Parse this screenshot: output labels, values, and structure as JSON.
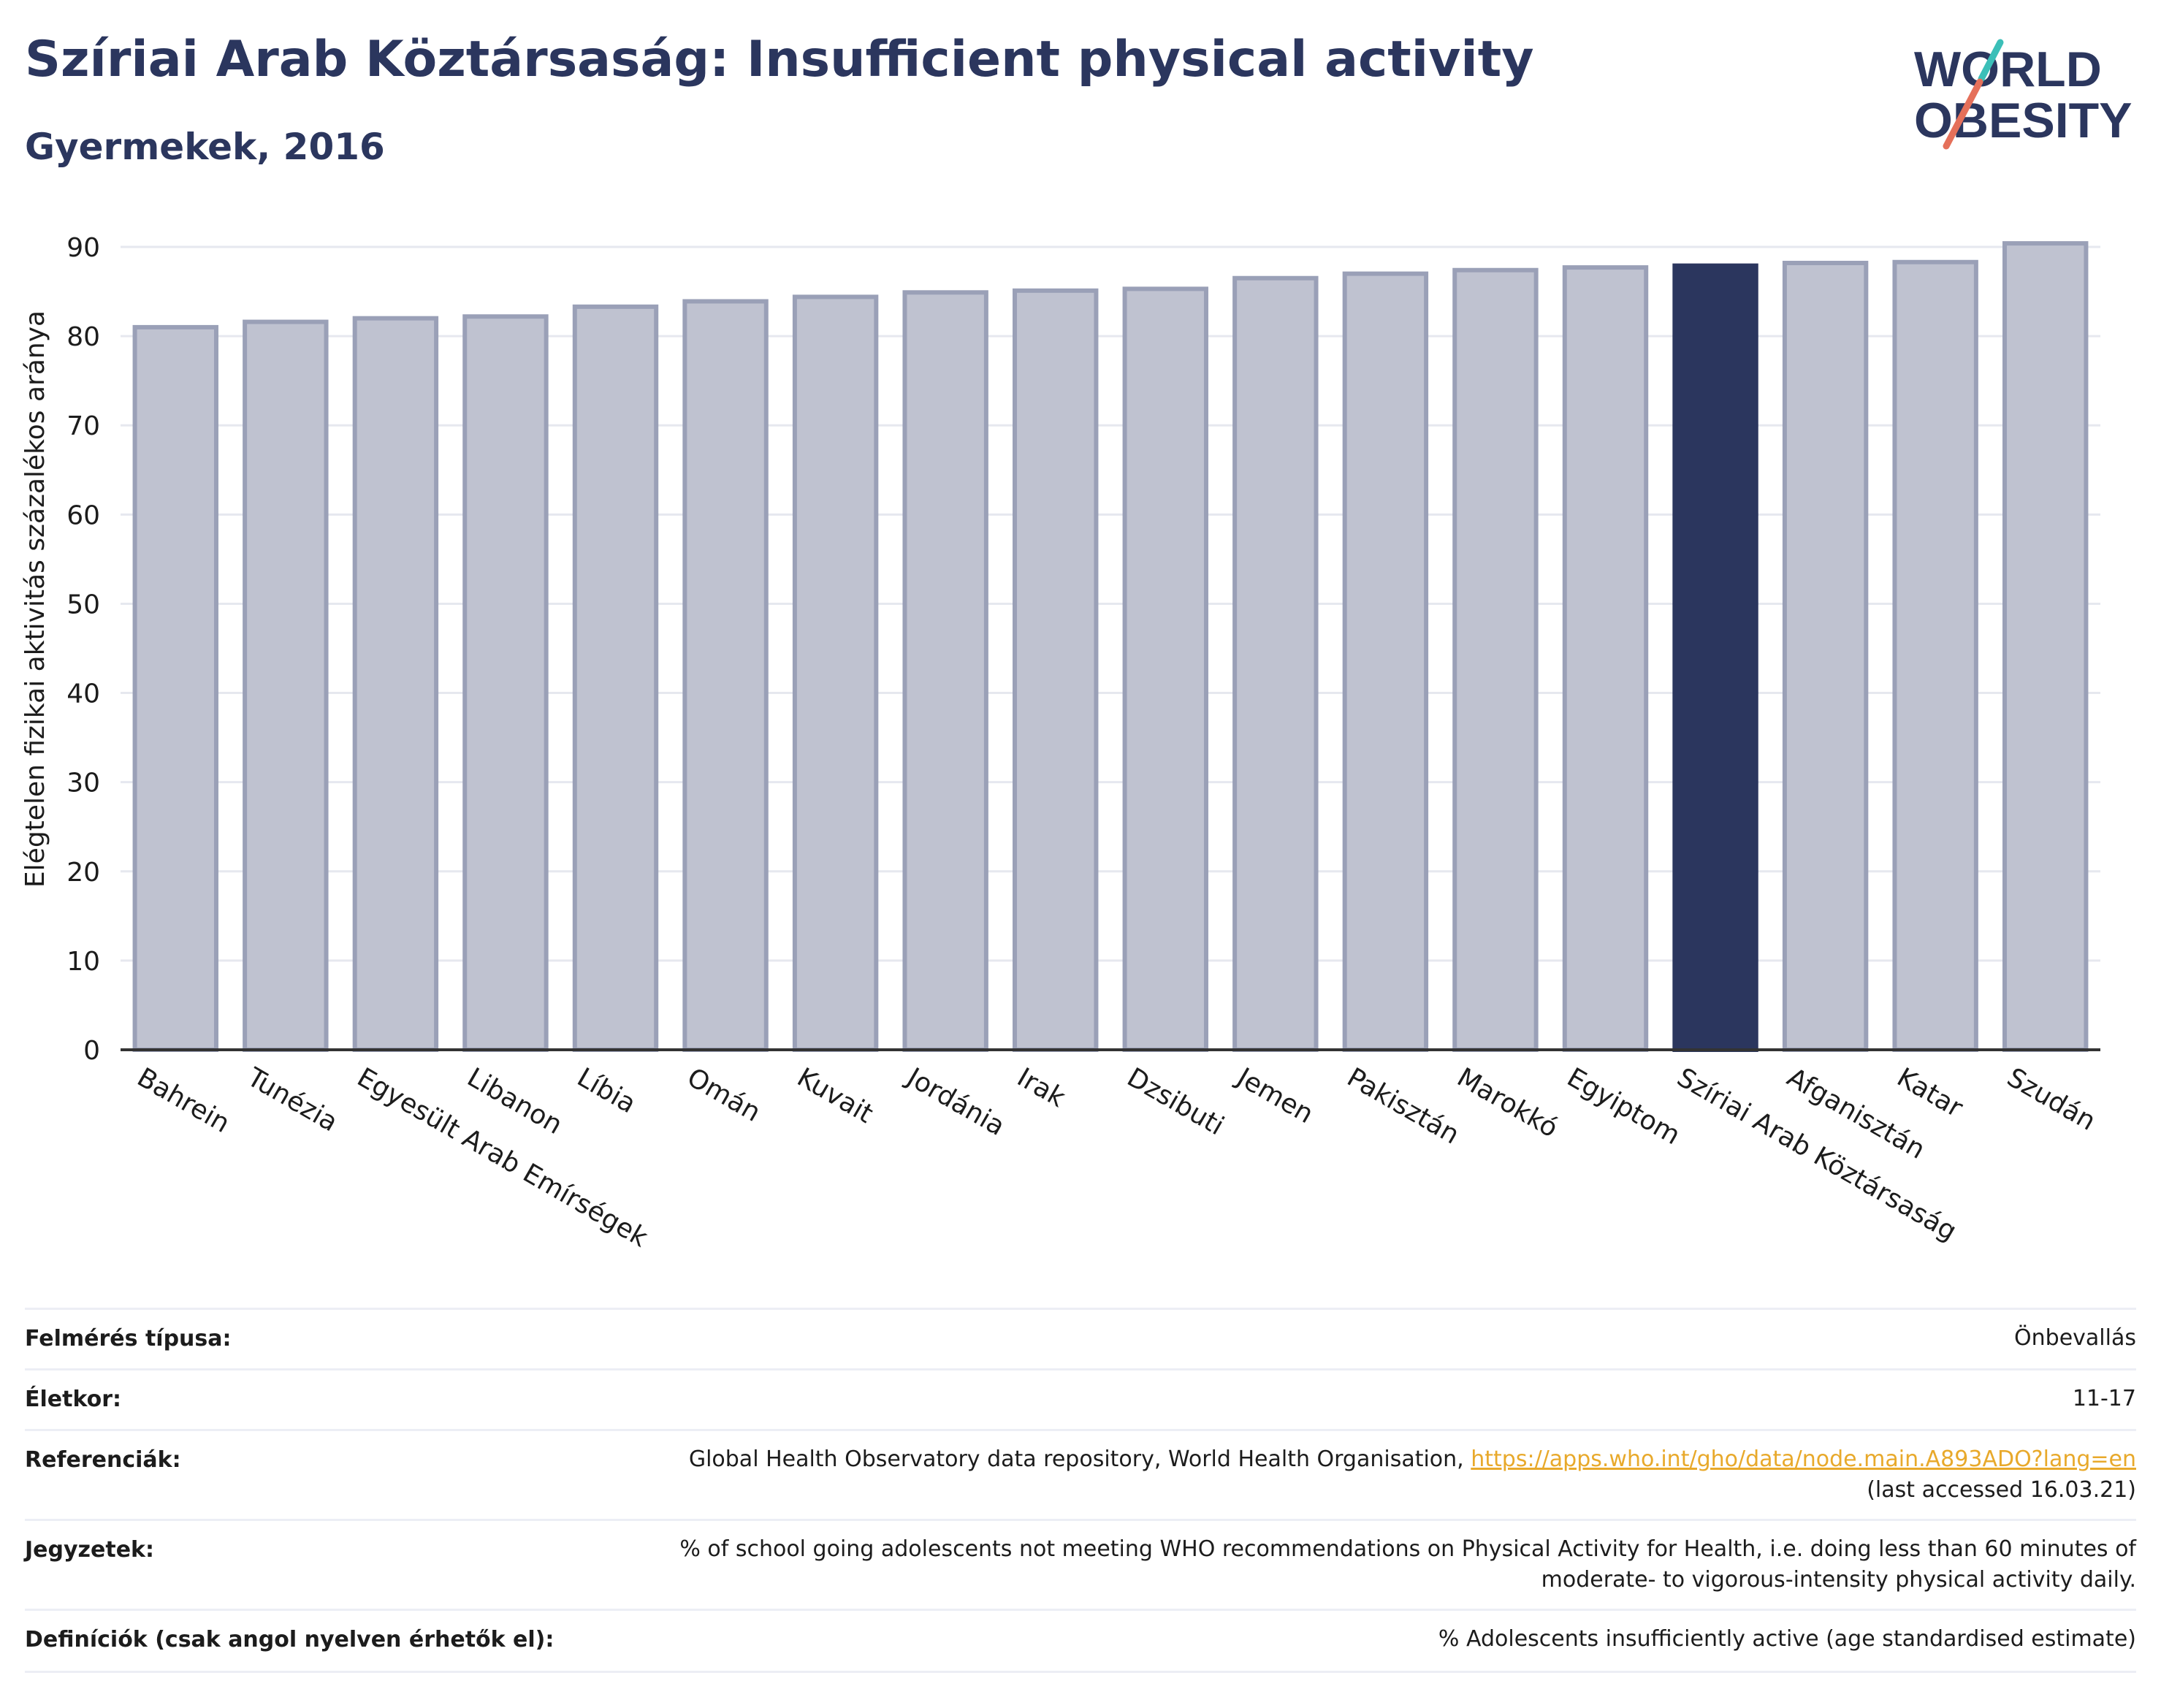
{
  "header": {
    "title": "Szíriai Arab Köztársaság: Insufficient physical activity",
    "subtitle": "Gyermekek, 2016"
  },
  "logo": {
    "line1": "WORLD",
    "line2": "OBESITY",
    "accent_teal": "#3bbfb8",
    "accent_coral": "#e5705a"
  },
  "colors": {
    "bar": "#bfc2d0",
    "bar_border": "#9aa0b7",
    "highlight": "#2b365e",
    "grid": "#e6e8ef",
    "text": "#2b365e",
    "link": "#e8a92b"
  },
  "chart_data": {
    "type": "bar",
    "title": "Szíriai Arab Köztársaság: Insufficient physical activity",
    "subtitle": "Gyermekek, 2016",
    "ylabel": "Elégtelen fizikai aktivitás százalékos aránya",
    "xlabel": "",
    "ylim": [
      0,
      90
    ],
    "yticks": [
      0,
      10,
      20,
      30,
      40,
      50,
      60,
      70,
      80,
      90
    ],
    "grid": true,
    "highlight": "Szíriai Arab Köztársaság",
    "categories": [
      "Bahrein",
      "Tunézia",
      "Egyesült Arab Emírségek",
      "Libanon",
      "Líbia",
      "Omán",
      "Kuvait",
      "Jordánia",
      "Irak",
      "Dzsibuti",
      "Jemen",
      "Pakisztán",
      "Marokkó",
      "Egyiptom",
      "Szíriai Arab Köztársaság",
      "Afganisztán",
      "Katar",
      "Szudán"
    ],
    "values": [
      81.0,
      81.6,
      82.0,
      82.2,
      83.3,
      83.9,
      84.4,
      84.9,
      85.1,
      85.3,
      86.5,
      87.0,
      87.4,
      87.7,
      87.9,
      88.2,
      88.3,
      90.4
    ]
  },
  "info": {
    "rows": [
      {
        "label": "Felmérés típusa:",
        "value": "Önbevallás"
      },
      {
        "label": "Életkor:",
        "value": "11-17"
      },
      {
        "label": "Referenciák:",
        "value": "Global Health Observatory data repository, World Health Organisation,",
        "link": "https://apps.who.int/gho/data/node.main.A893ADO?lang=en",
        "value2": "(last accessed 16.03.21)"
      },
      {
        "label": "Jegyzetek:",
        "value": "% of school going adolescents not meeting WHO recommendations on Physical Activity for Health, i.e. doing less than 60 minutes of",
        "value2": "moderate- to vigorous-intensity physical activity daily."
      },
      {
        "label": "Definíciók (csak angol nyelven érhetők el):",
        "value": "% Adolescents insufficiently active (age standardised estimate)"
      }
    ]
  }
}
